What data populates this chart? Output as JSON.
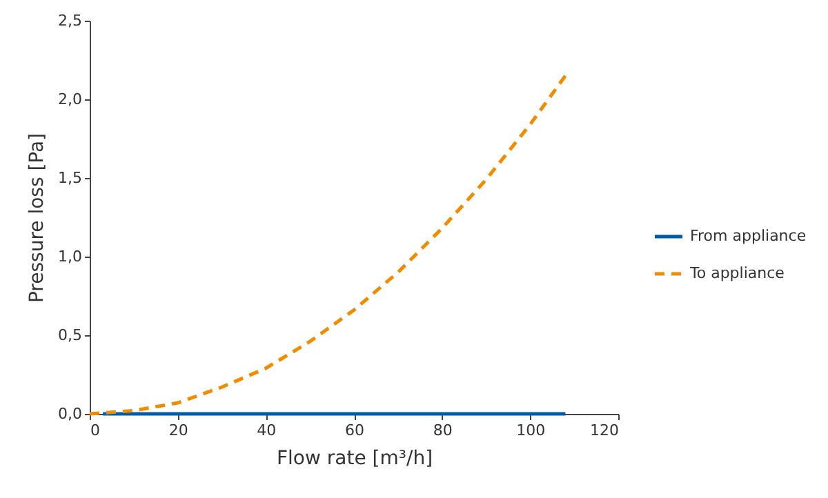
{
  "chart_data": {
    "type": "line",
    "xlabel": "Flow rate [m³/h]",
    "ylabel": "Pressure loss [Pa]",
    "xlim": [
      0,
      120
    ],
    "xticks": [
      0,
      20,
      40,
      60,
      80,
      100,
      120
    ],
    "ylim": [
      0,
      2.5
    ],
    "yticks": [
      {
        "value": 0,
        "label": "0,0"
      },
      {
        "value": 0.5,
        "label": "0,5"
      },
      {
        "value": 1,
        "label": "1,0"
      },
      {
        "value": 1.5,
        "label": "1,5"
      },
      {
        "value": 2,
        "label": "2,0"
      },
      {
        "value": 2.5,
        "label": "2,5"
      }
    ],
    "grid": false,
    "legend": "right",
    "marker": "none",
    "series": [
      {
        "name": "From appliance",
        "color": "#005ca8",
        "line_style": "solid",
        "x": [
          3,
          108
        ],
        "values": [
          0,
          0
        ]
      },
      {
        "name": "To appliance",
        "color": "#f08c00",
        "line_style": "dashed",
        "x": [
          0,
          10,
          20,
          30,
          40,
          50,
          60,
          70,
          80,
          90,
          100,
          108
        ],
        "values": [
          0,
          0.02,
          0.07,
          0.17,
          0.29,
          0.46,
          0.66,
          0.9,
          1.18,
          1.49,
          1.84,
          2.15
        ]
      }
    ]
  }
}
